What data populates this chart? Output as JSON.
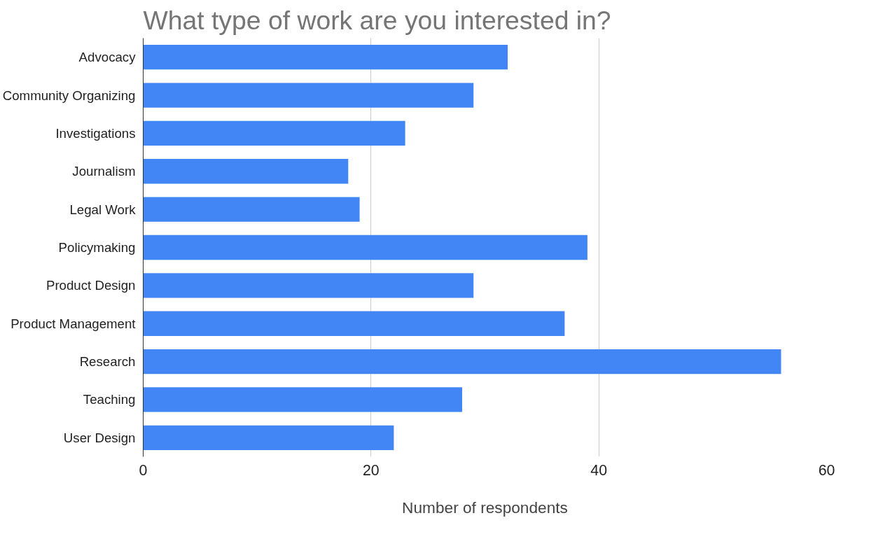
{
  "chart_data": {
    "type": "bar",
    "orientation": "horizontal",
    "title": "What type of work are you interested in?",
    "xlabel": "Number of respondents",
    "categories": [
      "Advocacy",
      "Community Organizing",
      "Investigations",
      "Journalism",
      "Legal Work",
      "Policymaking",
      "Product Design",
      "Product Management",
      "Research",
      "Teaching",
      "User Design"
    ],
    "values": [
      32,
      29,
      23,
      18,
      19,
      39,
      29,
      37,
      56,
      28,
      22
    ],
    "color": "#4285f4",
    "xlim": [
      0,
      60
    ],
    "xticks": [
      0,
      20,
      40,
      60
    ],
    "grid": "x"
  }
}
